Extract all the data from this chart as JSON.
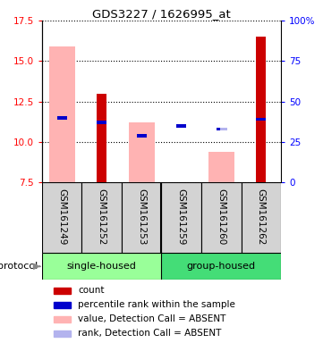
{
  "title": "GDS3227 / 1626995_at",
  "samples": [
    "GSM161249",
    "GSM161252",
    "GSM161253",
    "GSM161259",
    "GSM161260",
    "GSM161262"
  ],
  "ylim_left": [
    7.5,
    17.5
  ],
  "ylim_right": [
    0,
    100
  ],
  "yticks_left": [
    7.5,
    10.0,
    12.5,
    15.0,
    17.5
  ],
  "yticks_right": [
    0,
    25,
    50,
    75,
    100
  ],
  "ytick_labels_right": [
    "0",
    "25",
    "50",
    "75",
    "100%"
  ],
  "count_values": [
    7.5,
    13.0,
    7.5,
    7.5,
    7.5,
    16.5
  ],
  "rank_values": [
    11.5,
    11.2,
    10.4,
    11.0,
    10.8,
    11.4
  ],
  "value_absent": [
    15.9,
    null,
    11.2,
    null,
    9.4,
    null
  ],
  "rank_absent": [
    null,
    null,
    null,
    null,
    10.8,
    null
  ],
  "count_color": "#cc0000",
  "rank_color": "#0000cc",
  "value_absent_color": "#ffb3b3",
  "rank_absent_color": "#b3b3ee",
  "bar_bottom": 7.5,
  "legend_items": [
    {
      "label": "count",
      "color": "#cc0000"
    },
    {
      "label": "percentile rank within the sample",
      "color": "#0000cc"
    },
    {
      "label": "value, Detection Call = ABSENT",
      "color": "#ffb3b3"
    },
    {
      "label": "rank, Detection Call = ABSENT",
      "color": "#b3b3ee"
    }
  ],
  "group_info": [
    {
      "start": 0,
      "end": 2,
      "label": "single-housed",
      "color": "#99ff99"
    },
    {
      "start": 3,
      "end": 5,
      "label": "group-housed",
      "color": "#44dd77"
    }
  ]
}
